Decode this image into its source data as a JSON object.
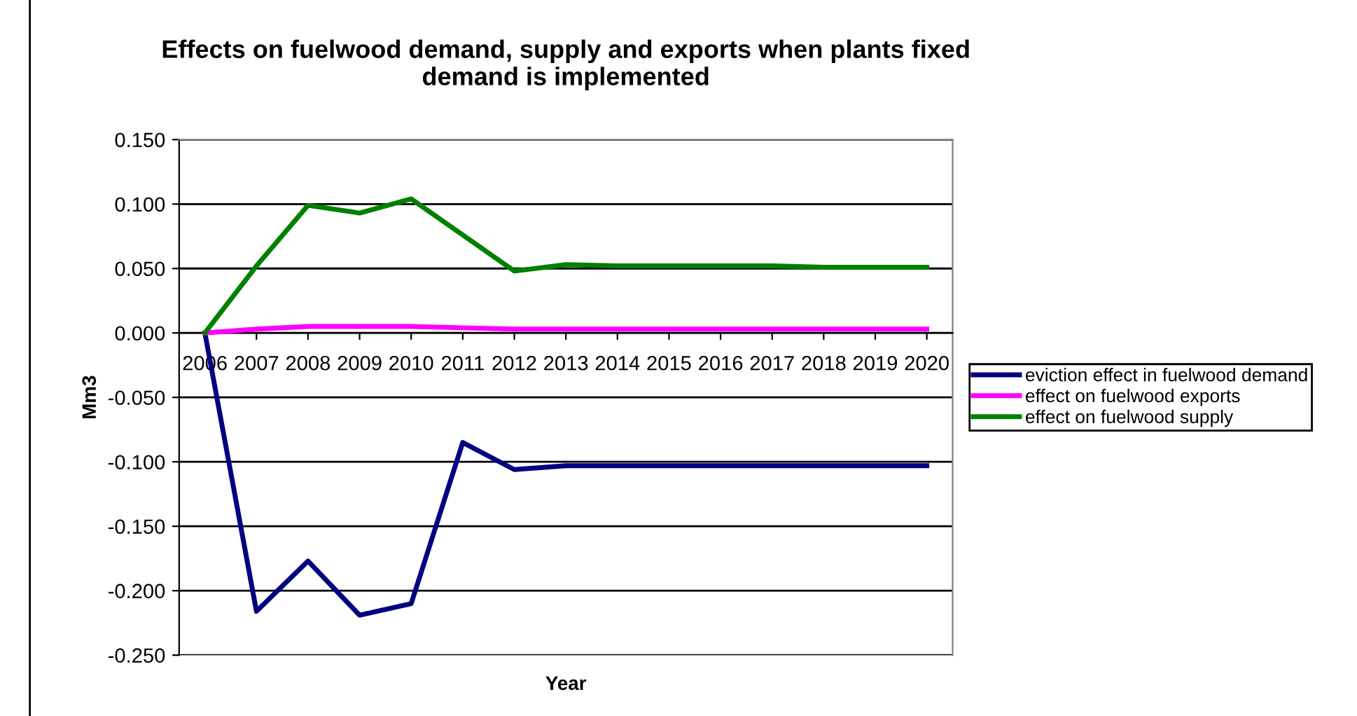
{
  "chart_data": {
    "type": "line",
    "title": "Effects on fuelwood demand, supply and exports when plants fixed\ndemand is implemented",
    "xlabel": "Year",
    "ylabel": "Mm3",
    "categories": [
      "2006",
      "2007",
      "2008",
      "2009",
      "2010",
      "2011",
      "2012",
      "2013",
      "2014",
      "2015",
      "2016",
      "2017",
      "2018",
      "2019",
      "2020"
    ],
    "series": [
      {
        "name": "eviction effect in fuelwood demand",
        "color": "#000080",
        "values": [
          0,
          -0.216,
          -0.177,
          -0.219,
          -0.21,
          -0.085,
          -0.106,
          -0.103,
          -0.103,
          -0.103,
          -0.103,
          -0.103,
          -0.103,
          -0.103,
          -0.103
        ]
      },
      {
        "name": "effect on fuelwood exports",
        "color": "#ff00ff",
        "values": [
          0,
          0.003,
          0.005,
          0.005,
          0.005,
          0.004,
          0.003,
          0.003,
          0.003,
          0.003,
          0.003,
          0.003,
          0.003,
          0.003,
          0.003
        ]
      },
      {
        "name": "effect on fuelwood supply",
        "color": "#008000",
        "values": [
          0,
          0.052,
          0.099,
          0.093,
          0.104,
          0.076,
          0.048,
          0.053,
          0.052,
          0.052,
          0.052,
          0.052,
          0.051,
          0.051,
          0.051
        ]
      }
    ],
    "ylim": [
      -0.25,
      0.15
    ],
    "yticks": [
      {
        "value": -0.25,
        "label": "-0.250"
      },
      {
        "value": -0.2,
        "label": "-0.200"
      },
      {
        "value": -0.15,
        "label": "-0.150"
      },
      {
        "value": -0.1,
        "label": "-0.100"
      },
      {
        "value": -0.05,
        "label": "-0.050"
      },
      {
        "value": 0,
        "label": "0.000"
      },
      {
        "value": 0.05,
        "label": "0.050"
      },
      {
        "value": 0.1,
        "label": "0.100"
      },
      {
        "value": 0.15,
        "label": "0.150"
      }
    ],
    "grid": "y",
    "legend": "right",
    "marker": "none",
    "line_style": "solid"
  }
}
